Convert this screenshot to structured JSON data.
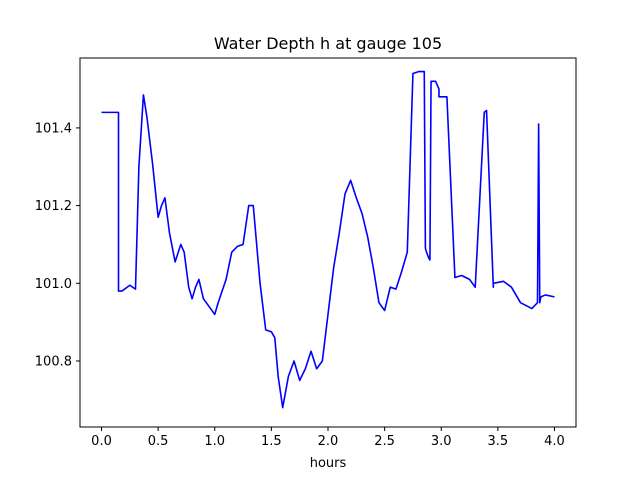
{
  "chart_data": {
    "type": "line",
    "title": "Water Depth h at gauge 105",
    "xlabel": "hours",
    "ylabel": "",
    "xlim": [
      -0.19,
      4.19
    ],
    "ylim": [
      100.63,
      101.58
    ],
    "xticks": [
      0.0,
      0.5,
      1.0,
      1.5,
      2.0,
      2.5,
      3.0,
      3.5,
      4.0
    ],
    "xtick_labels": [
      "0.0",
      "0.5",
      "1.0",
      "1.5",
      "2.0",
      "2.5",
      "3.0",
      "3.5",
      "4.0"
    ],
    "yticks": [
      100.8,
      101.0,
      101.2,
      101.4
    ],
    "ytick_labels": [
      "100.8",
      "101.0",
      "101.2",
      "101.4"
    ],
    "grid": false,
    "legend": "none",
    "series": [
      {
        "color": "#0000ff",
        "x": [
          0.0,
          0.15,
          0.15,
          0.18,
          0.25,
          0.3,
          0.33,
          0.37,
          0.4,
          0.45,
          0.5,
          0.53,
          0.56,
          0.6,
          0.65,
          0.7,
          0.73,
          0.77,
          0.8,
          0.83,
          0.86,
          0.9,
          0.95,
          1.0,
          1.03,
          1.1,
          1.15,
          1.2,
          1.25,
          1.3,
          1.34,
          1.37,
          1.4,
          1.45,
          1.5,
          1.53,
          1.56,
          1.6,
          1.65,
          1.7,
          1.75,
          1.8,
          1.85,
          1.9,
          1.95,
          2.0,
          2.05,
          2.1,
          2.15,
          2.2,
          2.25,
          2.3,
          2.35,
          2.4,
          2.45,
          2.5,
          2.55,
          2.6,
          2.65,
          2.7,
          2.75,
          2.8,
          2.85,
          2.86,
          2.87,
          2.89,
          2.9,
          2.91,
          2.95,
          2.98,
          2.98,
          3.05,
          3.12,
          3.12,
          3.18,
          3.25,
          3.3,
          3.38,
          3.4,
          3.4,
          3.46,
          3.46,
          3.55,
          3.62,
          3.7,
          3.8,
          3.85,
          3.86,
          3.87,
          3.88,
          3.92,
          4.0
        ],
        "y": [
          101.44,
          101.44,
          100.98,
          100.98,
          100.995,
          100.985,
          101.3,
          101.485,
          101.43,
          101.31,
          101.17,
          101.2,
          101.22,
          101.13,
          101.055,
          101.1,
          101.08,
          100.99,
          100.96,
          100.99,
          101.01,
          100.96,
          100.94,
          100.92,
          100.95,
          101.01,
          101.08,
          101.095,
          101.1,
          101.2,
          101.2,
          101.1,
          101.0,
          100.88,
          100.875,
          100.86,
          100.76,
          100.68,
          100.76,
          100.8,
          100.75,
          100.78,
          100.825,
          100.78,
          100.8,
          100.92,
          101.04,
          101.13,
          101.23,
          101.265,
          101.22,
          101.18,
          101.12,
          101.04,
          100.95,
          100.93,
          100.99,
          100.985,
          101.03,
          101.08,
          101.54,
          101.545,
          101.545,
          101.09,
          101.08,
          101.065,
          101.06,
          101.52,
          101.52,
          101.5,
          101.48,
          101.48,
          101.02,
          101.015,
          101.02,
          101.01,
          100.99,
          101.44,
          101.445,
          101.445,
          100.99,
          101.0,
          101.005,
          100.99,
          100.95,
          100.935,
          100.95,
          101.41,
          100.95,
          100.965,
          100.97,
          100.965
        ]
      }
    ]
  }
}
